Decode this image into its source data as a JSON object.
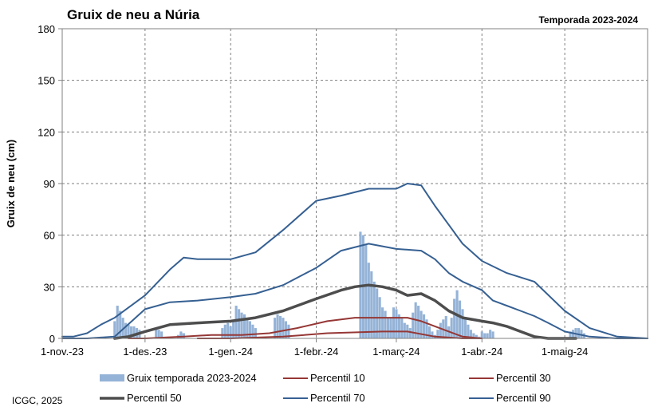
{
  "chart_data": {
    "type": "bar",
    "title": "Gruix de neu a Núria",
    "subtitle": "Temporada 2023-2024",
    "ylabel": "Gruix de neu (cm)",
    "ylim": [
      0,
      180
    ],
    "yticks": [
      0,
      30,
      60,
      90,
      120,
      150,
      180
    ],
    "xlim": [
      "2023-11-01",
      "2024-05-31"
    ],
    "x_ticks": [
      {
        "date": "2023-11-01",
        "label": "1-nov.-23"
      },
      {
        "date": "2023-12-01",
        "label": "1-des.-23"
      },
      {
        "date": "2024-01-01",
        "label": "1-gen.-24"
      },
      {
        "date": "2024-02-01",
        "label": "1-febr.-24"
      },
      {
        "date": "2024-03-01",
        "label": "1-març-24"
      },
      {
        "date": "2024-04-01",
        "label": "1-abr.-24"
      },
      {
        "date": "2024-05-01",
        "label": "1-maig-24"
      }
    ],
    "grid": "vertical",
    "legend_position": "bottom",
    "series": [
      {
        "name": "Gruix temporada 2023-2024",
        "type": "bar",
        "color": "#95b3d7",
        "x": [
          "2023-11-20",
          "2023-11-21",
          "2023-11-22",
          "2023-11-23",
          "2023-11-24",
          "2023-11-25",
          "2023-11-26",
          "2023-11-27",
          "2023-11-28",
          "2023-11-29",
          "2023-12-05",
          "2023-12-06",
          "2023-12-07",
          "2023-12-14",
          "2023-12-15",
          "2023-12-29",
          "2023-12-30",
          "2023-12-31",
          "2024-01-01",
          "2024-01-02",
          "2024-01-03",
          "2024-01-04",
          "2024-01-05",
          "2024-01-06",
          "2024-01-07",
          "2024-01-08",
          "2024-01-09",
          "2024-01-10",
          "2024-02-22",
          "2024-02-23",
          "2024-02-27",
          "2024-02-28",
          "2024-02-29",
          "2024-03-01",
          "2024-03-02",
          "2024-03-03",
          "2024-03-04",
          "2024-03-05",
          "2024-03-06",
          "2024-03-07",
          "2024-03-08",
          "2024-03-09",
          "2024-03-10",
          "2024-03-11",
          "2024-03-12",
          "2024-03-13",
          "2024-03-14",
          "2024-03-15",
          "2024-03-16",
          "2024-03-17",
          "2024-03-18",
          "2024-03-19",
          "2024-03-20",
          "2024-03-21",
          "2024-03-22",
          "2024-03-23",
          "2024-03-24",
          "2024-03-25",
          "2024-03-26",
          "2024-03-27",
          "2024-03-28",
          "2024-03-29",
          "2024-03-30",
          "2024-03-31",
          "2024-04-01",
          "2024-04-02",
          "2024-04-03",
          "2024-04-04",
          "2024-04-05",
          "2024-05-03",
          "2024-05-04",
          "2024-05-05",
          "2024-05-06",
          "2024-05-07",
          "2024-05-08"
        ],
        "values": [
          10,
          19,
          16,
          12,
          9,
          8,
          7,
          7,
          6,
          5,
          6,
          5,
          4,
          3,
          3,
          6,
          8,
          9,
          7,
          10,
          19,
          17,
          15,
          14,
          12,
          10,
          8,
          6,
          2,
          4,
          5,
          12,
          18,
          17,
          14,
          12,
          9,
          8,
          6,
          15,
          21,
          19,
          16,
          14,
          11,
          7,
          4,
          2,
          5,
          9,
          11,
          13,
          7,
          12,
          23,
          28,
          22,
          17,
          12,
          8,
          5,
          3,
          2,
          1,
          4,
          3,
          3,
          5,
          4,
          4,
          5,
          6,
          6,
          5,
          3
        ],
        "grouped_values": [
          {
            "x": "2023-12-13",
            "values": [
              2,
              4,
              3
            ]
          },
          {
            "x": "2024-01-17",
            "values": [
              12,
              14,
              13,
              12,
              10,
              8
            ]
          },
          {
            "x": "2024-02-17",
            "values": [
              62,
              60,
              55,
              44,
              39,
              33,
              29,
              24,
              18,
              16,
              12,
              8,
              6,
              4,
              2,
              1
            ]
          }
        ]
      },
      {
        "name": "Percentil 10",
        "type": "line",
        "color": "#953735",
        "width": 2,
        "x": [
          "2023-12-20",
          "2024-01-01",
          "2024-01-20",
          "2024-02-05",
          "2024-02-25",
          "2024-03-05",
          "2024-03-15",
          "2024-03-25",
          "2024-04-01"
        ],
        "values": [
          0,
          0,
          1,
          3,
          4,
          4,
          1,
          0,
          0
        ]
      },
      {
        "name": "Percentil 30",
        "type": "line",
        "color": "#953735",
        "width": 2,
        "x": [
          "2023-11-25",
          "2023-12-01",
          "2023-12-15",
          "2023-12-25",
          "2024-01-05",
          "2024-01-15",
          "2024-01-25",
          "2024-02-05",
          "2024-02-15",
          "2024-02-25",
          "2024-03-01",
          "2024-03-05",
          "2024-03-10",
          "2024-03-15",
          "2024-03-20",
          "2024-03-25",
          "2024-04-01"
        ],
        "values": [
          0,
          0,
          1,
          2,
          2,
          3,
          6,
          10,
          12,
          12,
          12,
          12,
          10,
          7,
          4,
          1,
          0
        ]
      },
      {
        "name": "Percentil 50",
        "type": "line",
        "color": "#4d4d4d",
        "width": 3.5,
        "x": [
          "2023-11-20",
          "2023-11-25",
          "2023-12-01",
          "2023-12-10",
          "2023-12-20",
          "2024-01-01",
          "2024-01-10",
          "2024-01-20",
          "2024-02-01",
          "2024-02-10",
          "2024-02-15",
          "2024-02-20",
          "2024-02-25",
          "2024-03-01",
          "2024-03-05",
          "2024-03-10",
          "2024-03-15",
          "2024-03-20",
          "2024-03-25",
          "2024-04-01",
          "2024-04-05",
          "2024-04-10",
          "2024-04-15",
          "2024-04-20",
          "2024-04-25",
          "2024-05-01",
          "2024-05-05"
        ],
        "values": [
          0,
          1,
          4,
          8,
          9,
          10,
          12,
          16,
          23,
          28,
          30,
          31,
          30,
          28,
          25,
          26,
          22,
          16,
          12,
          10,
          9,
          7,
          4,
          1,
          0,
          0,
          0
        ]
      },
      {
        "name": "Percentil 70",
        "type": "line",
        "color": "#366092",
        "width": 2,
        "x": [
          "2023-11-01",
          "2023-11-10",
          "2023-11-20",
          "2023-12-01",
          "2023-12-10",
          "2023-12-20",
          "2024-01-01",
          "2024-01-10",
          "2024-01-20",
          "2024-02-01",
          "2024-02-10",
          "2024-02-20",
          "2024-03-01",
          "2024-03-10",
          "2024-03-15",
          "2024-03-20",
          "2024-03-25",
          "2024-04-01",
          "2024-04-05",
          "2024-04-10",
          "2024-04-15",
          "2024-04-20",
          "2024-04-25",
          "2024-05-01",
          "2024-05-10",
          "2024-05-20",
          "2024-05-31"
        ],
        "values": [
          0,
          0,
          1,
          17,
          21,
          22,
          24,
          26,
          31,
          41,
          51,
          55,
          52,
          51,
          46,
          38,
          33,
          28,
          22,
          19,
          16,
          13,
          9,
          4,
          1,
          0,
          0
        ]
      },
      {
        "name": "Percentil 90",
        "type": "line",
        "color": "#366092",
        "width": 2,
        "x": [
          "2023-11-01",
          "2023-11-05",
          "2023-11-10",
          "2023-11-15",
          "2023-11-20",
          "2023-12-01",
          "2023-12-10",
          "2023-12-15",
          "2023-12-20",
          "2024-01-01",
          "2024-01-10",
          "2024-01-20",
          "2024-02-01",
          "2024-02-10",
          "2024-02-20",
          "2024-03-01",
          "2024-03-05",
          "2024-03-10",
          "2024-03-15",
          "2024-03-20",
          "2024-03-25",
          "2024-04-01",
          "2024-04-10",
          "2024-04-20",
          "2024-05-01",
          "2024-05-10",
          "2024-05-20",
          "2024-05-31"
        ],
        "values": [
          1,
          1,
          3,
          8,
          12,
          25,
          40,
          47,
          46,
          46,
          50,
          63,
          80,
          83,
          87,
          87,
          90,
          89,
          77,
          66,
          55,
          45,
          38,
          33,
          16,
          6,
          1,
          0
        ]
      }
    ],
    "legend": [
      {
        "label": "Gruix temporada 2023-2024",
        "kind": "bar",
        "color": "#95b3d7"
      },
      {
        "label": "Percentil 10",
        "kind": "line",
        "color": "#953735"
      },
      {
        "label": "Percentil 30",
        "kind": "line",
        "color": "#953735"
      },
      {
        "label": "Percentil 50",
        "kind": "line",
        "color": "#4d4d4d"
      },
      {
        "label": "Percentil 70",
        "kind": "line",
        "color": "#366092"
      },
      {
        "label": "Percentil 90",
        "kind": "line",
        "color": "#366092"
      }
    ],
    "credit": "ICGC, 2025"
  }
}
